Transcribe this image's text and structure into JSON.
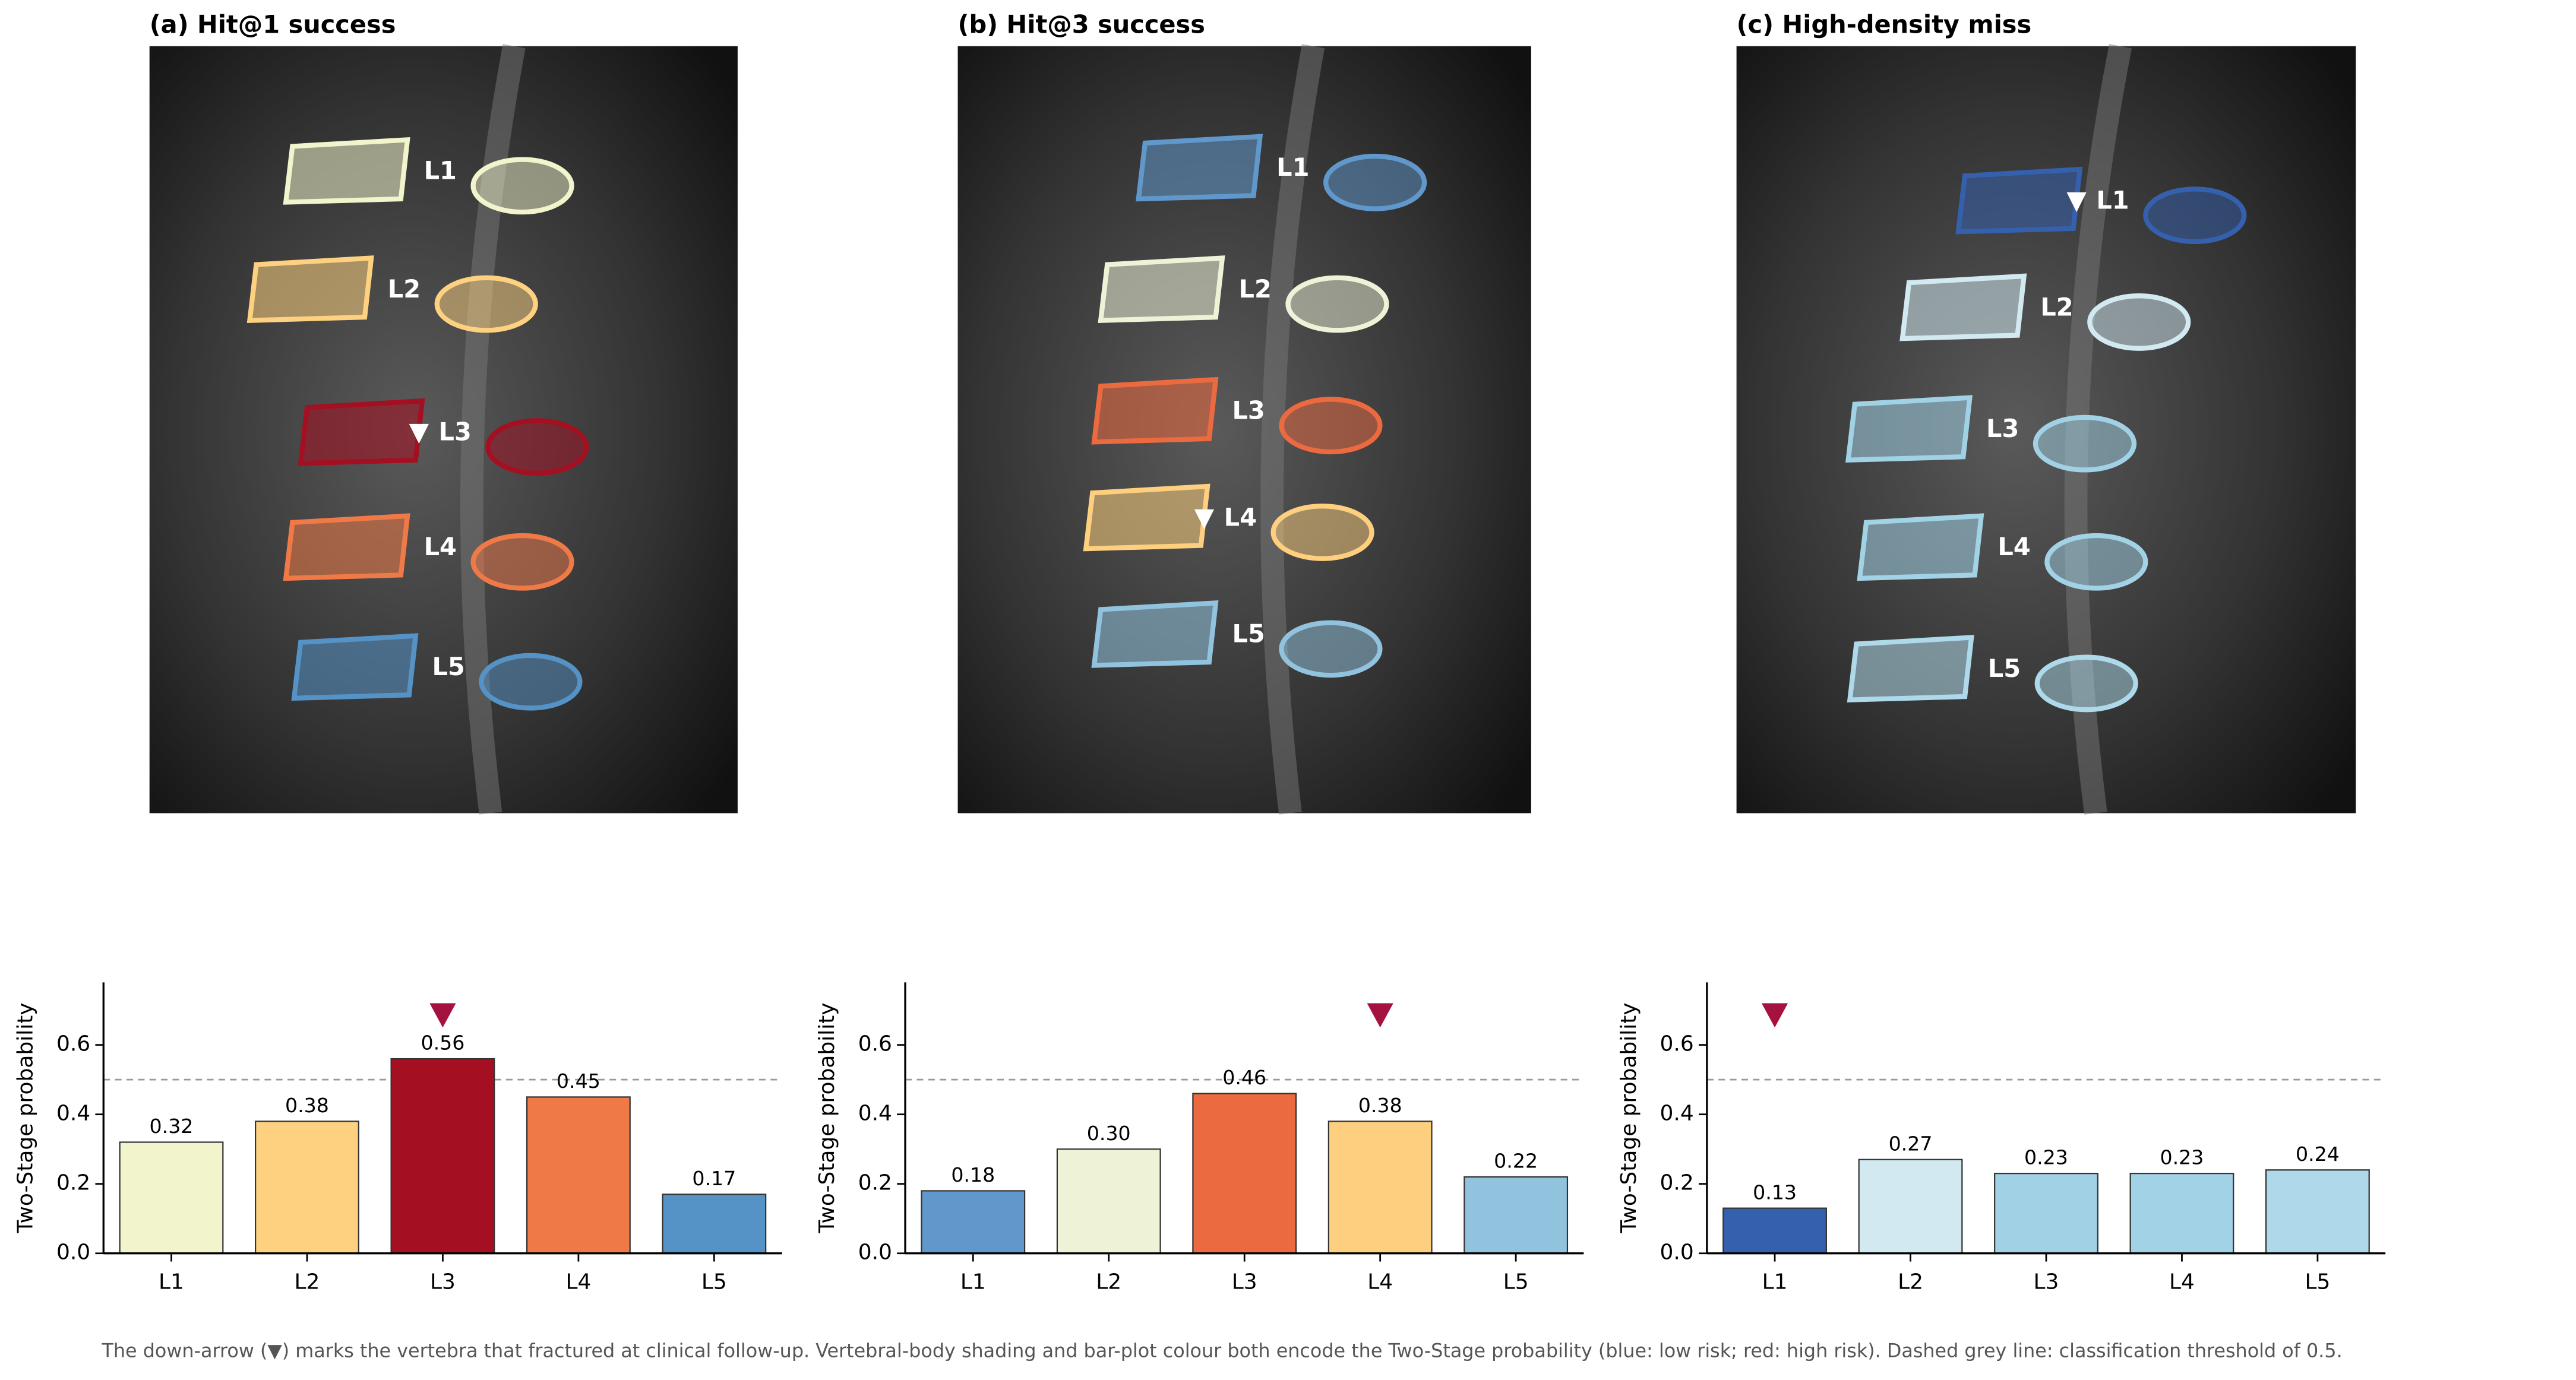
{
  "panels": [
    {
      "title": "(a) Hit@1 success",
      "labels": [
        "L1",
        "L2",
        "L3",
        "L4",
        "L5"
      ]
    },
    {
      "title": "(b) Hit@3 success",
      "labels": [
        "L1",
        "L2",
        "L3",
        "L4",
        "L5"
      ]
    },
    {
      "title": "(c) High-density miss",
      "labels": [
        "L1",
        "L2",
        "L3",
        "L4",
        "L5"
      ]
    }
  ],
  "chart_data": [
    {
      "type": "bar",
      "ylabel": "Two-Stage probability",
      "categories": [
        "L1",
        "L2",
        "L3",
        "L4",
        "L5"
      ],
      "values": [
        0.32,
        0.38,
        0.56,
        0.45,
        0.17
      ],
      "value_labels": [
        "0.32",
        "0.38",
        "0.56",
        "0.45",
        "0.17"
      ],
      "colors": [
        "#f2f4cc",
        "#fdd17f",
        "#a50f22",
        "#ef7a47",
        "#5592c6"
      ],
      "ylim": [
        0,
        0.78
      ],
      "yticks": [
        {
          "value": 0,
          "label": "0.0"
        },
        0.2,
        0.4,
        0.6
      ],
      "threshold": 0.5,
      "fractured": "L3"
    },
    {
      "type": "bar",
      "ylabel": "Two-Stage probability",
      "categories": [
        "L1",
        "L2",
        "L3",
        "L4",
        "L5"
      ],
      "values": [
        0.18,
        0.3,
        0.46,
        0.38,
        0.22
      ],
      "value_labels": [
        "0.18",
        "0.30",
        "0.46",
        "0.38",
        "0.22"
      ],
      "colors": [
        "#6198cb",
        "#eef3d8",
        "#ec6a3f",
        "#fdcf7e",
        "#91c3de"
      ],
      "ylim": [
        0,
        0.78
      ],
      "yticks": [
        {
          "value": 0,
          "label": "0.0"
        },
        0.2,
        0.4,
        0.6
      ],
      "threshold": 0.5,
      "fractured": "L4"
    },
    {
      "type": "bar",
      "ylabel": "Two-Stage probability",
      "categories": [
        "L1",
        "L2",
        "L3",
        "L4",
        "L5"
      ],
      "values": [
        0.13,
        0.27,
        0.23,
        0.23,
        0.24
      ],
      "value_labels": [
        "0.13",
        "0.27",
        "0.23",
        "0.23",
        "0.24"
      ],
      "colors": [
        "#3460ad",
        "#d2e9f1",
        "#a1d1e5",
        "#a2d2e5",
        "#aed9ea"
      ],
      "ylim": [
        0,
        0.78
      ],
      "yticks": [
        {
          "value": 0,
          "label": "0.0"
        },
        0.2,
        0.4,
        0.6
      ],
      "threshold": 0.5,
      "fractured": "L1"
    }
  ],
  "caption": "The down-arrow (▼) marks the vertebra that fractured at clinical follow-up. Vertebral-body shading and bar-plot colour both encode the Two-Stage probability (blue: low risk; red: high risk). Dashed grey line: classification threshold of 0.5."
}
